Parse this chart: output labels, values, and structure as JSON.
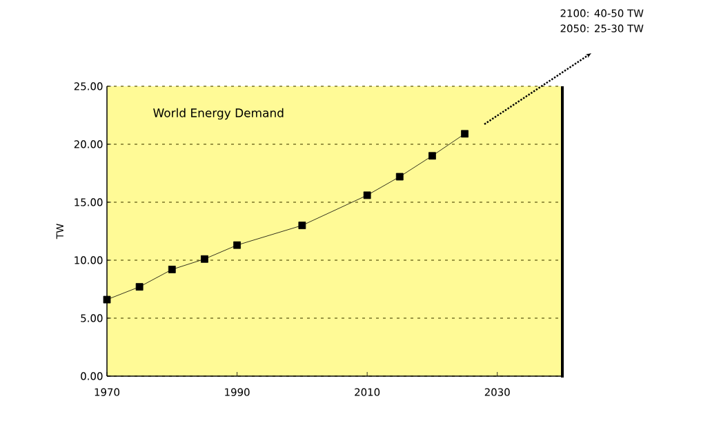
{
  "chart_data": {
    "type": "line",
    "title": "World Energy Demand",
    "ylabel": "TW",
    "annotations": [
      "2100:  40-50 TW",
      "2050:  25-30 TW"
    ],
    "x": [
      1970,
      1975,
      1980,
      1985,
      1990,
      2000,
      2010,
      2015,
      2020,
      2025
    ],
    "series": [
      {
        "color": "#000000",
        "values": [
          6.6,
          7.7,
          9.2,
          10.1,
          11.3,
          13.0,
          15.6,
          17.2,
          19.0,
          20.9
        ]
      }
    ],
    "xlim": [
      1970,
      2040
    ],
    "ylim": [
      0,
      25
    ],
    "xticks": [
      1970,
      1990,
      2010,
      2030
    ],
    "yticks": [
      {
        "value": 0,
        "label": "0.00"
      },
      {
        "value": 5,
        "label": "5.00"
      },
      {
        "value": 10,
        "label": "10.00"
      },
      {
        "value": 15,
        "label": "15.00"
      },
      {
        "value": 20,
        "label": "20.00"
      },
      {
        "value": 25,
        "label": "25.00"
      }
    ],
    "grid": "y",
    "marker": "square",
    "line_style": "solid"
  }
}
